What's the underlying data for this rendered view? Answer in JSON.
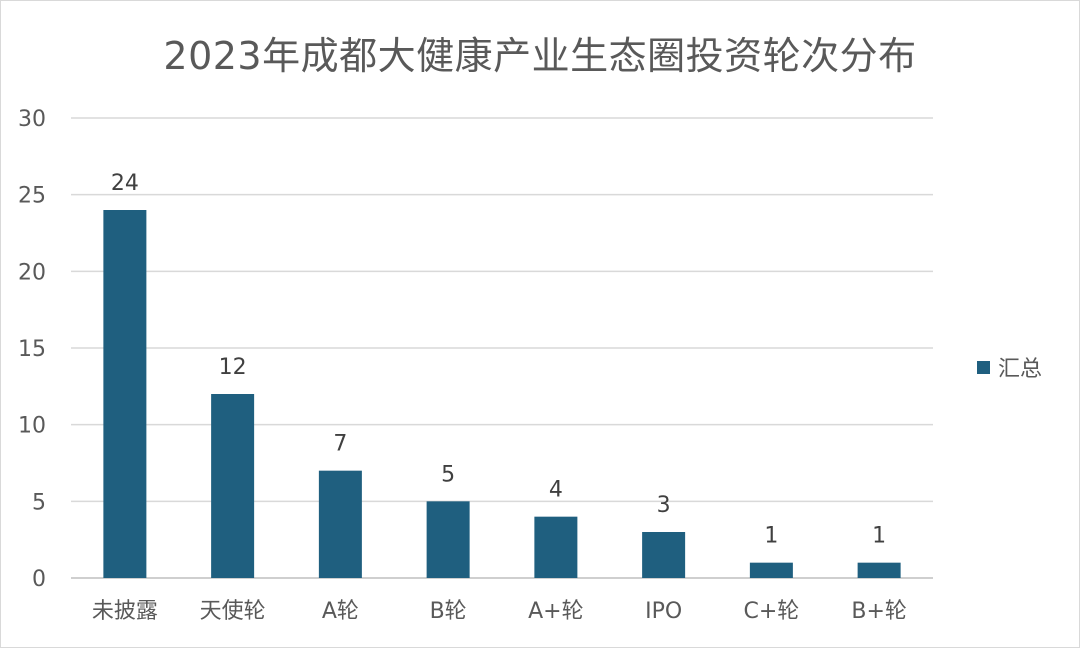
{
  "chart_data": {
    "type": "bar",
    "title": "2023年成都大健康产业生态圈投资轮次分布",
    "categories": [
      "未披露",
      "天使轮",
      "A轮",
      "B轮",
      "A+轮",
      "IPO",
      "C+轮",
      "B+轮"
    ],
    "series": [
      {
        "name": "汇总",
        "values": [
          24,
          12,
          7,
          5,
          4,
          3,
          1,
          1
        ],
        "color": "#1f5f7f"
      }
    ],
    "ylim": [
      0,
      30
    ],
    "yticks": [
      0,
      5,
      10,
      15,
      20,
      25,
      30
    ],
    "grid": true,
    "legend_position": "right",
    "data_labels": true
  }
}
